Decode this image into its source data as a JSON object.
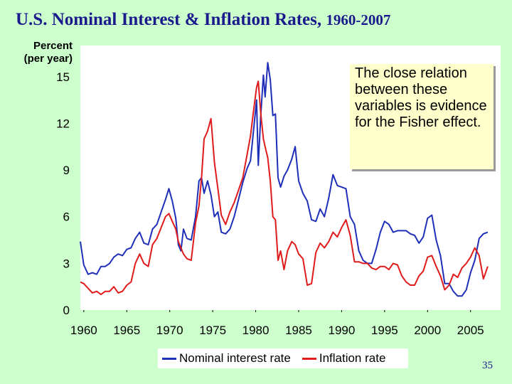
{
  "slide": {
    "title": "U.S. Nominal Interest & Inflation Rates,",
    "title_years": "1960-2007",
    "page_number": "35",
    "callout": "The close relation between these variables is evidence for the Fisher effect."
  },
  "colors": {
    "background": "#ccffcc",
    "plot_background": "#ffffff",
    "title": "#1a1a8c",
    "nominal": "#1f2fb8",
    "inflation": "#e01b1b",
    "callout_bg": "#ffffcc"
  },
  "chart_data": {
    "type": "line",
    "title": "",
    "ylabel_lines": [
      "Percent",
      "(per year)"
    ],
    "xlim": [
      1959.6,
      2008.5
    ],
    "ylim": [
      0,
      17
    ],
    "y_ticks": [
      0,
      3,
      6,
      9,
      12,
      15
    ],
    "x_ticks": [
      1960,
      1965,
      1970,
      1975,
      1980,
      1985,
      1990,
      1995,
      2000,
      2005
    ],
    "grid": false,
    "legend_position": "bottom",
    "series": [
      {
        "name": "Nominal interest rate",
        "color": "#1f2fb8",
        "x": [
          1959.6,
          1960.0,
          1960.5,
          1961.0,
          1961.5,
          1962.0,
          1962.5,
          1963.0,
          1963.5,
          1964.0,
          1964.5,
          1965.0,
          1965.5,
          1966.0,
          1966.5,
          1967.0,
          1967.5,
          1968.0,
          1968.5,
          1969.0,
          1969.5,
          1969.9,
          1970.3,
          1970.7,
          1971.0,
          1971.3,
          1971.6,
          1972.0,
          1972.5,
          1973.0,
          1973.4,
          1973.7,
          1974.0,
          1974.4,
          1974.8,
          1975.2,
          1975.6,
          1976.0,
          1976.5,
          1977.0,
          1977.5,
          1978.0,
          1978.5,
          1979.0,
          1979.4,
          1979.8,
          1980.1,
          1980.3,
          1980.6,
          1980.9,
          1981.1,
          1981.4,
          1981.7,
          1982.0,
          1982.3,
          1982.6,
          1982.9,
          1983.3,
          1983.7,
          1984.2,
          1984.6,
          1985.0,
          1985.5,
          1986.0,
          1986.5,
          1987.0,
          1987.5,
          1988.0,
          1988.5,
          1989.0,
          1989.5,
          1990.0,
          1990.5,
          1991.0,
          1991.5,
          1992.0,
          1992.5,
          1993.0,
          1993.5,
          1994.0,
          1994.5,
          1995.0,
          1995.5,
          1996.0,
          1996.5,
          1997.0,
          1997.5,
          1998.0,
          1998.5,
          1999.0,
          1999.5,
          2000.0,
          2000.5,
          2001.0,
          2001.5,
          2002.0,
          2002.5,
          2003.0,
          2003.5,
          2004.0,
          2004.5,
          2005.0,
          2005.5,
          2006.0,
          2006.5,
          2007.0
        ],
        "values": [
          4.4,
          2.9,
          2.3,
          2.4,
          2.3,
          2.8,
          2.8,
          3.0,
          3.4,
          3.6,
          3.5,
          3.9,
          4.0,
          4.6,
          5.0,
          4.3,
          4.2,
          5.2,
          5.5,
          6.3,
          7.1,
          7.8,
          7.0,
          5.9,
          4.2,
          3.8,
          5.2,
          4.6,
          4.5,
          6.0,
          8.3,
          8.5,
          7.5,
          8.3,
          7.4,
          6.0,
          6.3,
          5.0,
          4.9,
          5.2,
          6.0,
          7.1,
          8.2,
          9.1,
          9.6,
          11.8,
          13.5,
          9.3,
          12.6,
          15.1,
          13.7,
          15.9,
          14.8,
          12.5,
          12.6,
          8.5,
          7.9,
          8.6,
          9.0,
          9.7,
          10.5,
          8.3,
          7.5,
          7.0,
          5.8,
          5.7,
          6.5,
          6.0,
          7.2,
          8.7,
          8.0,
          7.9,
          7.8,
          6.0,
          5.5,
          3.8,
          3.2,
          3.0,
          3.0,
          3.9,
          5.0,
          5.7,
          5.5,
          5.0,
          5.1,
          5.1,
          5.1,
          4.9,
          4.8,
          4.3,
          4.7,
          5.9,
          6.1,
          4.5,
          3.5,
          1.7,
          1.7,
          1.2,
          0.9,
          0.9,
          1.3,
          2.4,
          3.2,
          4.6,
          4.9,
          5.0
        ]
      },
      {
        "name": "Inflation rate",
        "color": "#e01b1b",
        "x": [
          1959.6,
          1960.0,
          1960.5,
          1961.0,
          1961.5,
          1962.0,
          1962.5,
          1963.0,
          1963.5,
          1964.0,
          1964.5,
          1965.0,
          1965.5,
          1966.0,
          1966.5,
          1967.0,
          1967.5,
          1968.0,
          1968.5,
          1969.0,
          1969.5,
          1969.9,
          1970.3,
          1970.7,
          1971.0,
          1971.3,
          1971.6,
          1972.0,
          1972.5,
          1973.0,
          1973.4,
          1973.7,
          1974.0,
          1974.4,
          1974.8,
          1975.2,
          1975.6,
          1976.0,
          1976.5,
          1977.0,
          1977.5,
          1978.0,
          1978.5,
          1979.0,
          1979.4,
          1979.8,
          1980.1,
          1980.3,
          1980.6,
          1980.9,
          1981.1,
          1981.4,
          1981.7,
          1982.0,
          1982.3,
          1982.6,
          1982.9,
          1983.3,
          1983.7,
          1984.2,
          1984.6,
          1985.0,
          1985.5,
          1986.0,
          1986.5,
          1987.0,
          1987.5,
          1988.0,
          1988.5,
          1989.0,
          1989.5,
          1990.0,
          1990.5,
          1991.0,
          1991.5,
          1992.0,
          1992.5,
          1993.0,
          1993.5,
          1994.0,
          1994.5,
          1995.0,
          1995.5,
          1996.0,
          1996.5,
          1997.0,
          1997.5,
          1998.0,
          1998.5,
          1999.0,
          1999.5,
          2000.0,
          2000.5,
          2001.0,
          2001.5,
          2002.0,
          2002.5,
          2003.0,
          2003.5,
          2004.0,
          2004.5,
          2005.0,
          2005.5,
          2006.0,
          2006.5,
          2007.0
        ],
        "values": [
          1.8,
          1.7,
          1.4,
          1.1,
          1.2,
          1.0,
          1.2,
          1.2,
          1.5,
          1.1,
          1.2,
          1.6,
          1.8,
          3.0,
          3.6,
          3.0,
          2.8,
          4.2,
          4.6,
          5.3,
          6.0,
          6.2,
          5.7,
          5.2,
          4.4,
          4.0,
          3.6,
          3.3,
          3.2,
          5.6,
          6.7,
          8.5,
          11.0,
          11.5,
          12.3,
          9.5,
          7.8,
          6.1,
          5.5,
          6.3,
          6.9,
          7.7,
          8.5,
          10.0,
          11.2,
          13.0,
          14.3,
          14.7,
          12.6,
          11.0,
          10.5,
          9.8,
          8.3,
          6.0,
          5.8,
          3.2,
          3.8,
          2.6,
          3.8,
          4.4,
          4.2,
          3.6,
          3.3,
          1.6,
          1.7,
          3.7,
          4.3,
          4.0,
          4.4,
          5.0,
          4.7,
          5.3,
          5.8,
          4.8,
          3.1,
          3.1,
          3.0,
          3.0,
          2.7,
          2.6,
          2.8,
          2.8,
          2.6,
          3.0,
          2.9,
          2.2,
          1.8,
          1.6,
          1.6,
          2.2,
          2.5,
          3.4,
          3.5,
          2.8,
          2.2,
          1.3,
          1.6,
          2.3,
          2.1,
          2.7,
          3.0,
          3.4,
          4.0,
          3.5,
          2.0,
          2.8
        ]
      }
    ]
  }
}
